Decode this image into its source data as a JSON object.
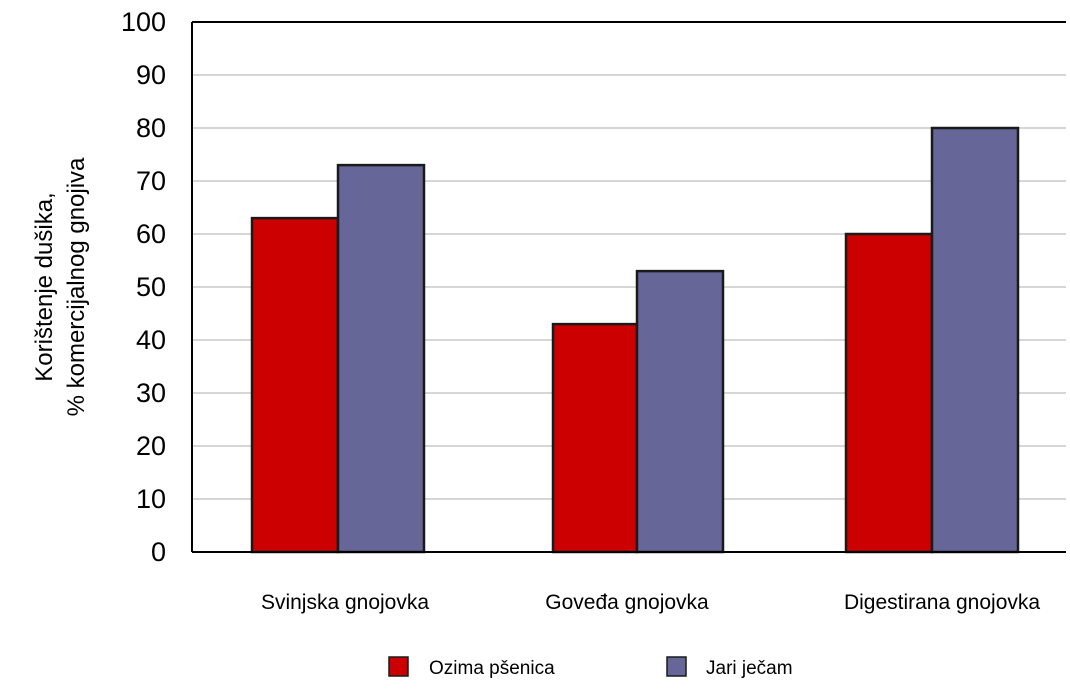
{
  "chart_data": {
    "type": "bar",
    "title": "",
    "xlabel": "",
    "ylabel_lines": [
      "Korištenje dušika,",
      "% komercijalnog gnojiva"
    ],
    "categories": [
      "Svinjska gnojovka",
      "Goveđa gnojovka",
      "Digestirana gnojovka"
    ],
    "series": [
      {
        "name": "Ozima pšenica",
        "color": "#cc0000",
        "values": [
          63,
          43,
          60
        ]
      },
      {
        "name": "Jari ječam",
        "color": "#666699",
        "values": [
          73,
          53,
          80
        ]
      }
    ],
    "ylim": [
      0,
      100
    ],
    "yticks": [
      0,
      10,
      20,
      30,
      40,
      50,
      60,
      70,
      80,
      90,
      100
    ],
    "grid": true,
    "gridColor": "#c8c8c8",
    "legend": "bottom"
  }
}
